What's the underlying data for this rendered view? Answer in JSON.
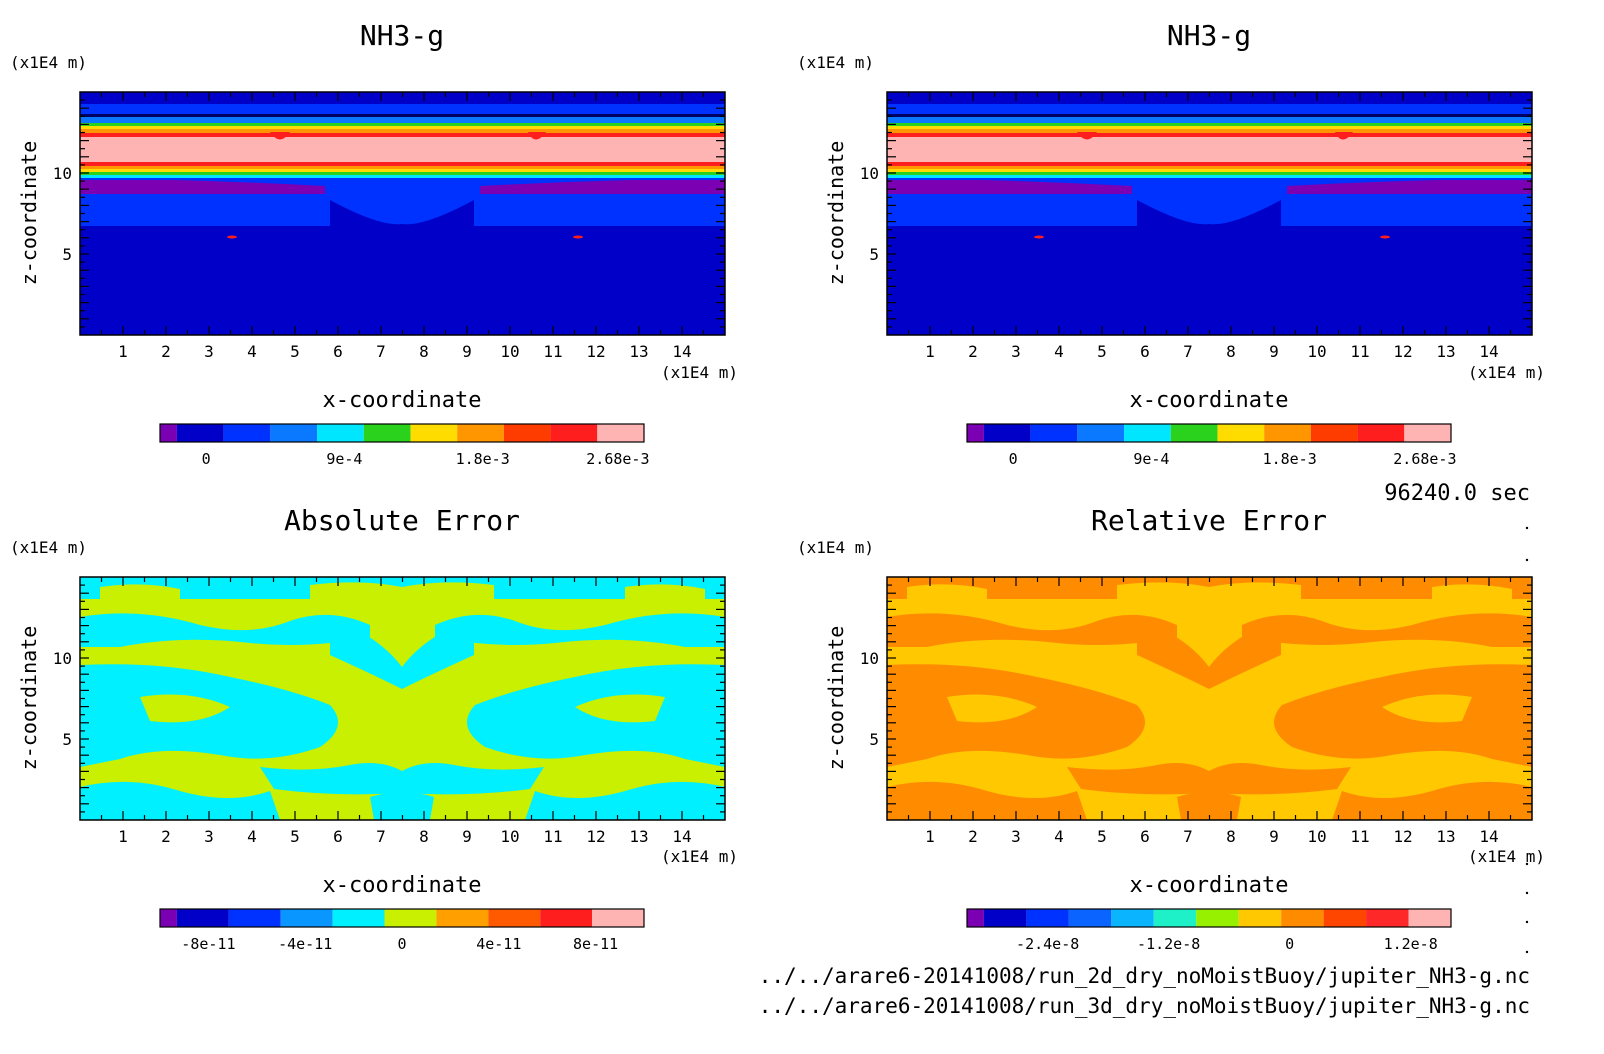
{
  "colors": {
    "nh3": [
      "#7b00b4",
      "#0000c8",
      "#0032ff",
      "#0a78ff",
      "#00e6ff",
      "#2ad21e",
      "#ffdc00",
      "#ff9600",
      "#ff3c00",
      "#ff1e1e",
      "#ffb4b4"
    ],
    "abs": [
      "#7b00b4",
      "#0000c8",
      "#0032ff",
      "#0a96ff",
      "#00f0ff",
      "#c8f000",
      "#ffa000",
      "#ff5a00",
      "#ff1e1e",
      "#ffb4b4"
    ],
    "rel": [
      "#7b00b4",
      "#0000c8",
      "#0032ff",
      "#0a64ff",
      "#0ab4ff",
      "#1ef0c8",
      "#96f000",
      "#ffc800",
      "#ff8c00",
      "#ff4600",
      "#ff2828",
      "#ffb4b4"
    ]
  },
  "chart_data": [
    {
      "type": "heatmap",
      "title": "NH3-g",
      "xlabel": "x-coordinate",
      "ylabel": "z-coordinate",
      "x_unit": "(x1E4 m)",
      "y_unit": "(x1E4 m)",
      "xticks": [
        "1",
        "2",
        "3",
        "4",
        "5",
        "6",
        "7",
        "8",
        "9",
        "10",
        "11",
        "12",
        "13",
        "14"
      ],
      "yticks": [
        "5",
        "10"
      ],
      "xlim": [
        0,
        15
      ],
      "ylim": [
        0,
        15
      ],
      "colorbar": {
        "labels": [
          "0",
          "9e-4",
          "1.8e-3",
          "2.68e-3"
        ],
        "range": [
          -0.0003,
          0.00285
        ],
        "levels": 11
      },
      "bands": [
        {
          "z": [
            0,
            6.6
          ],
          "level": "dark-blue"
        },
        {
          "z": [
            6.6,
            8.2
          ],
          "level": "blue"
        },
        {
          "z": [
            8.2,
            9.5
          ],
          "level": "purple/blue"
        },
        {
          "z": [
            9.5,
            12.3
          ],
          "level": "light-pink (max 2.68e-3)"
        },
        {
          "z": [
            12.3,
            13.9
          ],
          "level": "blue"
        },
        {
          "z": [
            13.9,
            15
          ],
          "level": "dark-blue"
        }
      ]
    },
    {
      "type": "heatmap",
      "title": "NH3-g",
      "xlabel": "x-coordinate",
      "ylabel": "z-coordinate",
      "x_unit": "(x1E4 m)",
      "y_unit": "(x1E4 m)",
      "xticks": [
        "1",
        "2",
        "3",
        "4",
        "5",
        "6",
        "7",
        "8",
        "9",
        "10",
        "11",
        "12",
        "13",
        "14"
      ],
      "yticks": [
        "5",
        "10"
      ],
      "xlim": [
        0,
        15
      ],
      "ylim": [
        0,
        15
      ],
      "colorbar": {
        "labels": [
          "0",
          "9e-4",
          "1.8e-3",
          "2.68e-3"
        ],
        "range": [
          -0.0003,
          0.00285
        ],
        "levels": 11
      }
    },
    {
      "type": "heatmap",
      "title": "Absolute Error",
      "xlabel": "x-coordinate",
      "ylabel": "z-coordinate",
      "x_unit": "(x1E4 m)",
      "y_unit": "(x1E4 m)",
      "xticks": [
        "1",
        "2",
        "3",
        "4",
        "5",
        "6",
        "7",
        "8",
        "9",
        "10",
        "11",
        "12",
        "13",
        "14"
      ],
      "yticks": [
        "5",
        "10"
      ],
      "xlim": [
        0,
        15
      ],
      "ylim": [
        0,
        15
      ],
      "colorbar": {
        "labels": [
          "-8e-11",
          "-4e-11",
          "0",
          "4e-11",
          "8e-11"
        ],
        "range": [
          -1e-10,
          1e-10
        ],
        "levels": 10
      },
      "dominant_levels": [
        "cyan (slightly negative)",
        "yellow-green (slightly positive)"
      ]
    },
    {
      "type": "heatmap",
      "title": "Relative Error",
      "xlabel": "x-coordinate",
      "ylabel": "z-coordinate",
      "x_unit": "(x1E4 m)",
      "y_unit": "(x1E4 m)",
      "xticks": [
        "1",
        "2",
        "3",
        "4",
        "5",
        "6",
        "7",
        "8",
        "9",
        "10",
        "11",
        "12",
        "13",
        "14"
      ],
      "yticks": [
        "5",
        "10"
      ],
      "xlim": [
        0,
        15
      ],
      "ylim": [
        0,
        15
      ],
      "colorbar": {
        "labels": [
          "-2.4e-8",
          "-1.2e-8",
          "0",
          "1.2e-8"
        ],
        "range": [
          -3.2e-08,
          1.6e-08
        ],
        "levels": 12
      },
      "dominant_levels": [
        "amber (near 0)",
        "orange (slightly positive)"
      ]
    }
  ],
  "footer": {
    "time": "96240.0 sec",
    "files": [
      "../../arare6-20141008/run_2d_dry_noMoistBuoy/jupiter_NH3-g.nc",
      "../../arare6-20141008/run_3d_dry_noMoistBuoy/jupiter_NH3-g.nc"
    ]
  }
}
